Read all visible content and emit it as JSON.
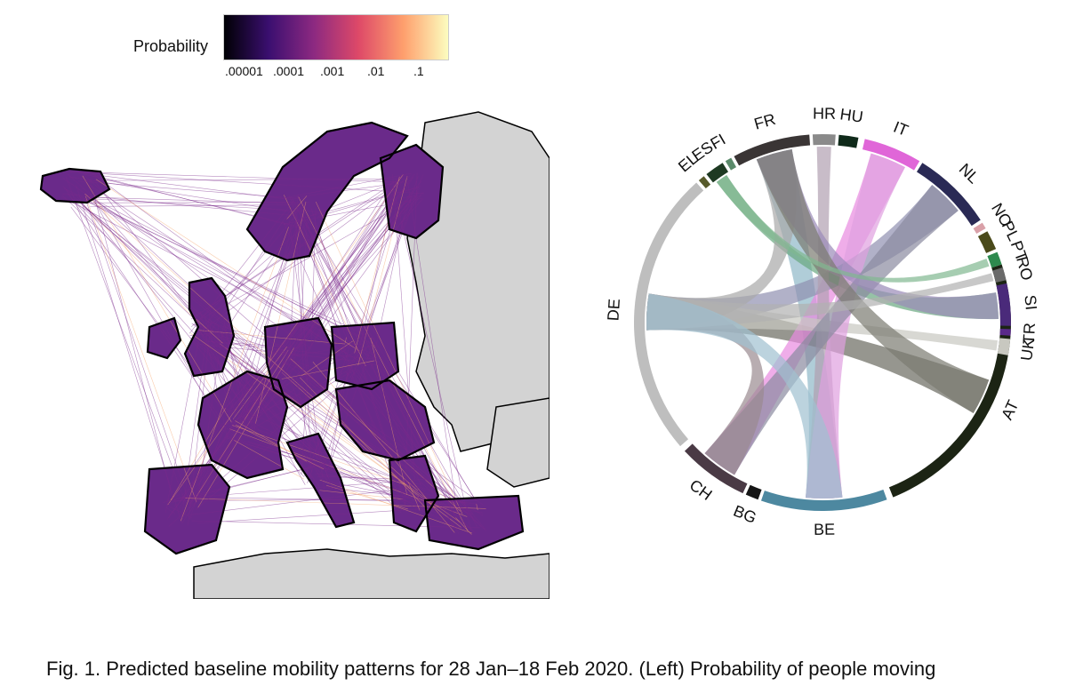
{
  "legend": {
    "title": "Probability",
    "ticks": [
      ".00001",
      ".0001",
      ".001",
      ".01",
      ".1"
    ],
    "gradient": [
      "#000004",
      "#3b0f70",
      "#8c2981",
      "#de4968",
      "#fe9f6d",
      "#fcfdbf"
    ]
  },
  "map": {
    "land_color": "#d3d3d3",
    "border_color": "#000000",
    "edge_color": "#7b2a8c",
    "hot_color": "#f5a36a"
  },
  "chord": {
    "segments": [
      {
        "label": "AT",
        "color": "#1c2414"
      },
      {
        "label": "BE",
        "color": "#4d88a0"
      },
      {
        "label": "BG",
        "color": "#151515"
      },
      {
        "label": "CH",
        "color": "#4a3a45"
      },
      {
        "label": "DE",
        "color": "#bebebe"
      },
      {
        "label": "EL",
        "color": "#575a2a"
      },
      {
        "label": "ES",
        "color": "#1e3a22"
      },
      {
        "label": "FI",
        "color": "#5a8a6a"
      },
      {
        "label": "FR",
        "color": "#3a3535"
      },
      {
        "label": "HR",
        "color": "#8a8a8a"
      },
      {
        "label": "HU",
        "color": "#0f2a1a"
      },
      {
        "label": "IT",
        "color": "#e066d8"
      },
      {
        "label": "NL",
        "color": "#2a2a55"
      },
      {
        "label": "NO",
        "color": "#d9a0a8"
      },
      {
        "label": "PL",
        "color": "#4a4a1a"
      },
      {
        "label": "PT",
        "color": "#2e8a4e"
      },
      {
        "label": "RO",
        "color": "#6a6a6a"
      },
      {
        "label": "SI",
        "color": "#4a2a7a"
      },
      {
        "label": "TR",
        "color": "#5a2a8a"
      },
      {
        "label": "UK",
        "color": "#c8c8c0"
      }
    ]
  },
  "caption": {
    "bold": "Fig. 1. Predicted baseline mobility patterns for 28 Jan–18 Feb 2020. (Left)",
    "light": " Probability of people moving"
  }
}
